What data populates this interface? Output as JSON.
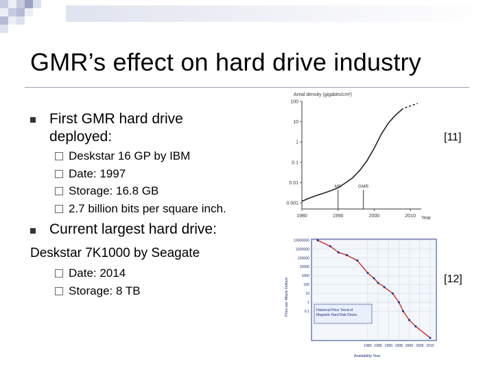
{
  "slide": {
    "title": "GMR’s effect on hard drive industry",
    "bullet1": "First GMR hard drive deployed:",
    "sub1": [
      "Deskstar 16 GP by IBM",
      "Date: 1997",
      "Storage: 16.8 GB",
      "2.7 billion bits per square inch."
    ],
    "bullet2": "Current largest hard drive:",
    "plain_line": "Deskstar 7K1000 by Seagate",
    "sub2": [
      "Date: 2014",
      "Storage: 8 TB"
    ],
    "ref1": "[11]",
    "ref2": "[12]",
    "accent_color": "#3e4a7a"
  },
  "chart_data": [
    {
      "type": "line",
      "title": "Areal density (gigabits/cm²)",
      "xlabel": "Year",
      "ylabel": "",
      "y_scale": "log",
      "x_ticks": [
        "1980",
        "1990",
        "2000",
        "2010"
      ],
      "y_ticks": [
        "0.001",
        "0.01",
        "0.1",
        "1",
        "10",
        "100"
      ],
      "xlim": [
        1980,
        2013
      ],
      "ylim": [
        0.0005,
        100
      ],
      "annotations": [
        "MR",
        "GMR"
      ],
      "series": [
        {
          "x": [
            1980,
            1982,
            1984,
            1986,
            1988,
            1990,
            1992,
            1994,
            1996,
            1998,
            2000,
            2002,
            2004,
            2006,
            2008,
            2010,
            2012
          ],
          "y": [
            0.0012,
            0.0017,
            0.0023,
            0.003,
            0.004,
            0.0055,
            0.0095,
            0.017,
            0.04,
            0.12,
            0.5,
            2.5,
            9,
            22,
            45,
            60,
            80
          ]
        }
      ]
    },
    {
      "type": "line",
      "title": "Historical Price Trend of Magnetic Hard Disk Drives",
      "subtitle": "",
      "xlabel": "Availability Year",
      "ylabel": "Price per Mbyte Dollars",
      "y_scale": "log",
      "x_ticks": [
        "1980",
        "1985",
        "1990",
        "1995",
        "2000",
        "2005",
        "2010"
      ],
      "y_ticks": [
        "10000000",
        "1000000",
        "100000",
        "10000",
        "1000",
        "100",
        "10",
        "1",
        "0.1"
      ],
      "corner_label": "",
      "series": [
        {
          "x": [
            1956,
            1962,
            1966,
            1970,
            1975,
            1980,
            1983,
            1985,
            1988,
            1992,
            1995,
            1997,
            2000,
            2003,
            2010
          ],
          "y": [
            9000000,
            2000000,
            400000,
            200000,
            50000,
            2000,
            500,
            150,
            50,
            10,
            1,
            0.1,
            0.01,
            0.002,
            0.0001
          ]
        }
      ]
    }
  ]
}
